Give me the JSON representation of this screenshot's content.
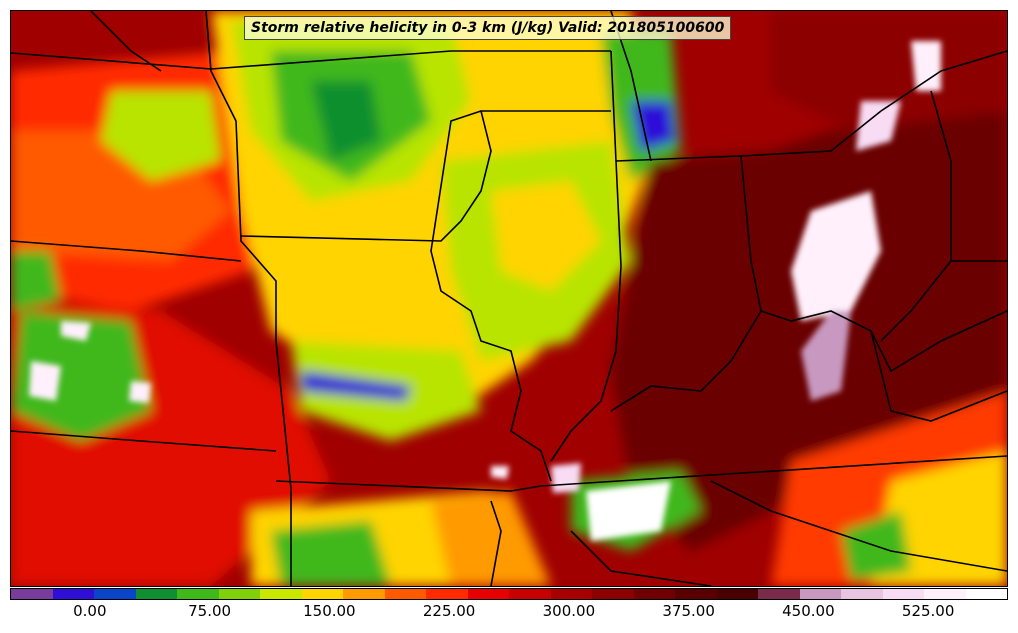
{
  "title": "Storm relative helicity in 0-3 km (J/kg) Valid: 201805100600",
  "colorbar": {
    "colors": [
      "#7a3c9a",
      "#2f0fd8",
      "#0a44c8",
      "#0f8f2f",
      "#3fb81a",
      "#80d10a",
      "#c8e800",
      "#ffd400",
      "#ff9a00",
      "#ff5a00",
      "#ff2a00",
      "#e60000",
      "#c80000",
      "#a80000",
      "#8c0000",
      "#700000",
      "#580000",
      "#480000",
      "#7a2a4a",
      "#c898c0",
      "#e8c4e0",
      "#f8dcf4",
      "#fff0fc",
      "#ffffff"
    ],
    "min_value": -50,
    "max_value": 575,
    "tick_values": [
      0,
      75,
      150,
      225,
      300,
      375,
      450,
      525
    ],
    "tick_labels": [
      "0.00",
      "75.00",
      "150.00",
      "225.00",
      "300.00",
      "375.00",
      "450.00",
      "525.00"
    ]
  },
  "map": {
    "field": "0-3 km storm relative helicity",
    "region": "Central United States",
    "fill_colors": {
      "low": "#3fb81a",
      "mid_low": "#b8e400",
      "mid": "#ffd400",
      "mid_high": "#ff6a00",
      "high": "#e60000",
      "very_high": "#8c0000",
      "extreme": "#fff0fc",
      "negative": "#2f0fd8",
      "border": "#000000"
    }
  }
}
